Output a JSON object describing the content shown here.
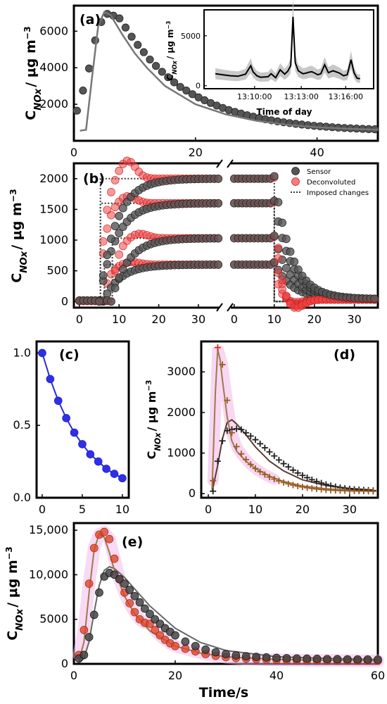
{
  "chart_data": [
    {
      "panel": "(a)",
      "type": "scatter",
      "ylabel": "C_NOx / μg m^-3",
      "xlim": [
        0,
        50
      ],
      "ylim": [
        0,
        7400
      ],
      "xticks": [
        0,
        20,
        40
      ],
      "yticks": [
        2000,
        4000,
        6000
      ],
      "ytick_labels": [
        "2000",
        "4000",
        "6000"
      ],
      "series": [
        {
          "style": "points",
          "color": "#555555",
          "x": [
            0.5,
            1.5,
            2.5,
            3.5,
            4.5,
            5.5,
            6.5,
            7.5,
            8.5,
            9.5,
            10.5,
            11.5,
            12.5,
            13.5,
            14.5,
            15.5,
            16.5,
            17.5,
            18.5,
            19.5,
            20.5,
            21.5,
            22.5,
            23.5,
            24.5,
            25.5,
            26.5,
            27.5,
            28.5,
            29.5,
            30.5,
            31.5,
            32.5,
            33.5,
            34.5,
            35.5,
            36.5,
            37.5,
            38.5,
            39.5,
            40.5,
            41.5,
            42.5,
            43.5,
            44.5,
            45.5,
            46.5,
            47.5,
            48.5,
            49.5
          ],
          "y": [
            1650,
            2750,
            3960,
            5500,
            6500,
            6950,
            6850,
            6700,
            6200,
            5700,
            5250,
            4850,
            4450,
            4100,
            3780,
            3480,
            3200,
            2950,
            2750,
            2550,
            2380,
            2220,
            2070,
            1930,
            1800,
            1680,
            1580,
            1490,
            1400,
            1320,
            1250,
            1180,
            1120,
            1065,
            1015,
            970,
            930,
            890,
            855,
            820,
            795,
            770,
            745,
            720,
            700,
            685,
            670,
            655,
            640,
            630
          ]
        },
        {
          "style": "line",
          "color": "#777777",
          "x": [
            1,
            2,
            3,
            4,
            5,
            6,
            8,
            10,
            12,
            15,
            20,
            25,
            30,
            35,
            40,
            45,
            50
          ],
          "y": [
            550,
            600,
            3500,
            6300,
            7050,
            6900,
            5800,
            4800,
            4000,
            3000,
            2000,
            1450,
            1100,
            880,
            740,
            660,
            610
          ]
        }
      ],
      "inset": {
        "ylabel": "C_NOx / μg m^-3",
        "xlabel": "Time of day",
        "xticks": [
          "13:10:00",
          "13:13:00",
          "13:16:00"
        ],
        "yticks": [
          0,
          5000
        ],
        "ytick_labels": [
          "0",
          "5000"
        ],
        "x_minutes": [
          0,
          1,
          2,
          3,
          4,
          4.7,
          5,
          5.5,
          6,
          7,
          7.4,
          8,
          8.6,
          9.2,
          9.6,
          10,
          10.3,
          10.6,
          11,
          11.6,
          12,
          12.4,
          12.8,
          13.2,
          13.6,
          14,
          14.5,
          15,
          15.6,
          16,
          16.5,
          17,
          17.5,
          18,
          18.4,
          18.8,
          19.2
        ],
        "y": [
          1200,
          1100,
          1000,
          950,
          1150,
          2000,
          1400,
          1000,
          850,
          900,
          1200,
          800,
          1600,
          1150,
          1450,
          2000,
          6900,
          2300,
          1500,
          1200,
          1250,
          1350,
          1400,
          1250,
          1100,
          1200,
          2100,
          1300,
          1500,
          1400,
          1250,
          1000,
          1100,
          2600,
          1300,
          750,
          700
        ]
      }
    },
    {
      "panel": "(b)",
      "type": "scatter",
      "ylabel": "C_NOx / μg m^-3",
      "xlim": [
        0,
        35
      ],
      "ylim": [
        -100,
        2250
      ],
      "xticks": [
        0,
        10,
        20,
        30
      ],
      "yticks": [
        0,
        500,
        1000,
        1500,
        2000
      ],
      "ytick_labels": [
        "0",
        "500",
        "1000",
        "1500",
        "2000"
      ],
      "legend": [
        "Sensor",
        "Deconvoluted",
        "Imposed changes"
      ],
      "levels": [
        600,
        1030,
        1600,
        2000
      ]
    },
    {
      "panel": "(c)",
      "type": "line",
      "x": [
        0,
        1,
        2,
        3,
        4,
        5,
        6,
        7,
        8,
        9,
        10
      ],
      "y": [
        1.0,
        0.82,
        0.67,
        0.55,
        0.45,
        0.37,
        0.3,
        0.25,
        0.2,
        0.165,
        0.135
      ],
      "xlim": [
        -0.7,
        10.8
      ],
      "ylim": [
        0,
        1.08
      ],
      "xticks": [
        0,
        5,
        10
      ],
      "yticks": [
        0,
        0.5,
        1.0
      ],
      "ytick_labels": [
        "0.0",
        "0.5",
        "1.0"
      ]
    },
    {
      "panel": "(d)",
      "type": "scatter",
      "ylabel": "C_NOx / μg m^-3",
      "xlim": [
        -1.5,
        36
      ],
      "ylim": [
        -100,
        3750
      ],
      "xticks": [
        0,
        10,
        20,
        30
      ],
      "yticks": [
        0,
        1000,
        2000,
        3000
      ],
      "ytick_labels": [
        "0",
        "1000",
        "2000",
        "3000"
      ],
      "series": [
        {
          "name_hidden": "sensor",
          "marker": "+",
          "color": "#222222",
          "x": [
            1,
            2,
            3,
            4,
            5,
            6,
            7,
            8,
            9,
            10,
            11,
            12,
            13,
            14,
            15,
            16,
            17,
            18,
            19,
            20,
            21,
            22,
            23,
            24,
            25,
            26,
            27,
            28,
            29,
            30,
            31,
            32,
            33,
            34,
            35
          ],
          "y": [
            60,
            800,
            1300,
            1550,
            1580,
            1600,
            1580,
            1500,
            1420,
            1330,
            1230,
            1130,
            1030,
            930,
            830,
            740,
            660,
            580,
            510,
            450,
            395,
            345,
            300,
            262,
            228,
            198,
            172,
            150,
            132,
            118,
            107,
            98,
            90,
            84,
            78
          ]
        },
        {
          "name_hidden": "deconvoluted",
          "marker": "+",
          "color": "#9a5a20",
          "x": [
            1,
            2,
            3,
            4,
            5,
            6,
            7,
            8,
            9,
            10,
            11,
            12,
            13,
            14,
            15,
            16,
            17,
            18,
            19,
            20,
            21,
            22,
            23,
            24,
            25,
            26,
            27,
            28,
            29,
            30,
            31,
            32,
            33,
            34,
            35
          ],
          "y": [
            320,
            3600,
            3180,
            2300,
            1500,
            1160,
            980,
            840,
            720,
            620,
            540,
            470,
            410,
            360,
            315,
            275,
            242,
            212,
            187,
            165,
            146,
            130,
            116,
            104,
            94,
            86,
            80,
            75,
            71,
            68,
            66,
            64,
            62,
            60,
            58
          ]
        }
      ]
    },
    {
      "panel": "(e)",
      "type": "scatter",
      "ylabel": "C_NOx / μg m^-3",
      "xlabel": "Time/s",
      "xlim": [
        0,
        60
      ],
      "ylim": [
        0,
        15800
      ],
      "xticks": [
        0,
        20,
        40,
        60
      ],
      "yticks": [
        0,
        5000,
        10000,
        15000
      ],
      "ytick_labels": [
        "0",
        "5000",
        "10,000",
        "15,000"
      ],
      "series": [
        {
          "name_hidden": "sensor",
          "color": "#444444",
          "x": [
            1,
            2,
            3,
            4,
            5,
            6,
            7,
            8,
            9,
            10,
            11,
            12,
            13,
            14,
            15,
            16,
            17,
            18,
            19,
            20,
            22,
            24,
            26,
            28,
            30,
            32,
            34,
            36,
            38,
            40,
            42,
            44,
            46,
            48,
            50,
            52,
            54,
            56,
            58,
            60
          ],
          "y": [
            600,
            1000,
            3000,
            5500,
            8000,
            9800,
            10200,
            10000,
            9500,
            9000,
            8300,
            7600,
            6900,
            6200,
            5600,
            5000,
            4500,
            4000,
            3600,
            3200,
            2500,
            2000,
            1600,
            1300,
            1100,
            950,
            850,
            780,
            720,
            670,
            630,
            600,
            580,
            560,
            540,
            525,
            510,
            500,
            490,
            480
          ]
        },
        {
          "name_hidden": "deconvoluted",
          "color": "#d9361a",
          "x": [
            1,
            2,
            3,
            4,
            5,
            6,
            7,
            8,
            9,
            10,
            11,
            12,
            13,
            14,
            15,
            16,
            17,
            18,
            19,
            20,
            22,
            24,
            26,
            28,
            30,
            32,
            34,
            36,
            38,
            40,
            42,
            44,
            46,
            48,
            50,
            52,
            54,
            56,
            58,
            60
          ],
          "y": [
            1000,
            3800,
            9000,
            13000,
            14500,
            14800,
            14000,
            11800,
            9500,
            8000,
            6800,
            5800,
            5000,
            4600,
            4500,
            3800,
            3200,
            2700,
            2300,
            2000,
            1700,
            1400,
            1100,
            900,
            750,
            650,
            580,
            520,
            480,
            450,
            430,
            410,
            400,
            390,
            380,
            370,
            360,
            350,
            345,
            340
          ]
        }
      ]
    }
  ]
}
